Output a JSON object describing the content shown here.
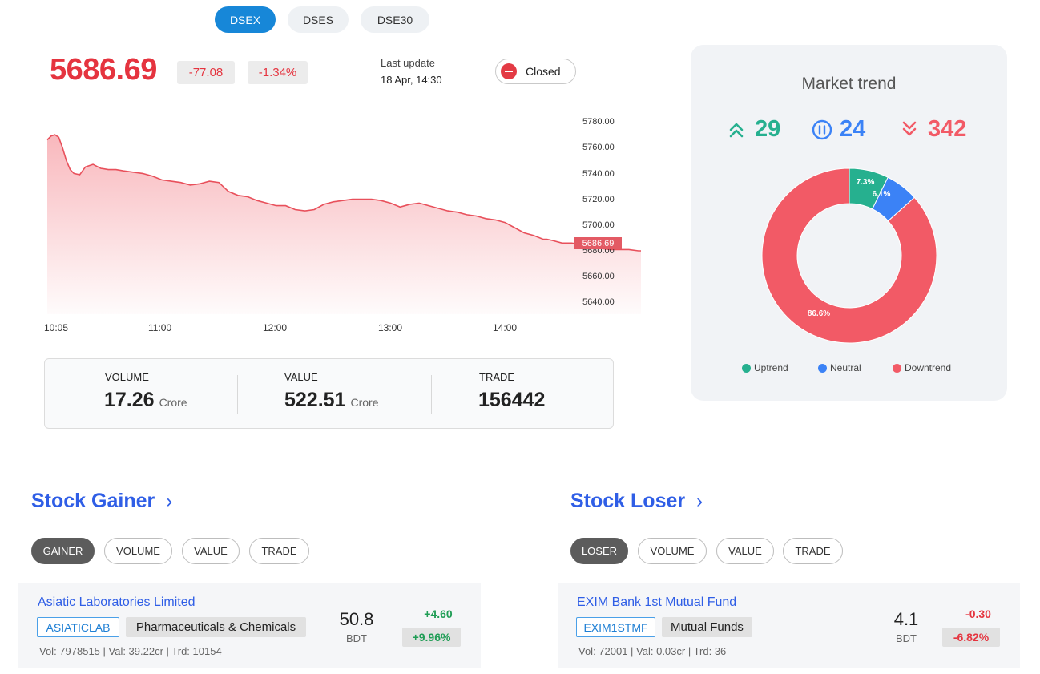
{
  "index_tabs": [
    {
      "label": "DSEX",
      "active": true
    },
    {
      "label": "DSES",
      "active": false
    },
    {
      "label": "DSE30",
      "active": false
    }
  ],
  "quote": {
    "value": "5686.69",
    "change": "-77.08",
    "change_pct": "-1.34%",
    "last_update_label": "Last update",
    "last_update_value": "18 Apr, 14:30",
    "market_status": "Closed"
  },
  "chart_data": {
    "type": "area",
    "x_ticks": [
      "10:05",
      "11:00",
      "12:00",
      "13:00",
      "14:00"
    ],
    "y_ticks": [
      "5780.00",
      "5760.00",
      "5740.00",
      "5720.00",
      "5700.00",
      "5680.00",
      "5660.00",
      "5640.00"
    ],
    "ylim": [
      5640,
      5780
    ],
    "current_label": "5686.69",
    "line_color": "#e8505b",
    "x_minutes": [
      0,
      2,
      4,
      6,
      8,
      10,
      12,
      14,
      17,
      20,
      24,
      28,
      32,
      36,
      40,
      45,
      50,
      55,
      60,
      65,
      70,
      75,
      80,
      85,
      90,
      95,
      100,
      105,
      110,
      115,
      120,
      125,
      130,
      135,
      140,
      145,
      150,
      155,
      160,
      165,
      170,
      175,
      180,
      185,
      190,
      195,
      200,
      205,
      210,
      215,
      220,
      225,
      230,
      235,
      240,
      245,
      250,
      255,
      260,
      262,
      265,
      270,
      275,
      280,
      285,
      290,
      295,
      300,
      305,
      310,
      315,
      320,
      325,
      330,
      335,
      340,
      345,
      350,
      355,
      360,
      365,
      370,
      375,
      380,
      385,
      388,
      390,
      395,
      400,
      405,
      410,
      415,
      420,
      425,
      430,
      435,
      440,
      445,
      450,
      455,
      460,
      465,
      470,
      475,
      480,
      485
    ],
    "values": [
      5766,
      5769,
      5770,
      5768,
      5760,
      5750,
      5743,
      5740,
      5739,
      5745,
      5747,
      5744,
      5743,
      5743,
      5742,
      5741,
      5740,
      5738,
      5735,
      5734,
      5733,
      5731,
      5732,
      5734,
      5733,
      5726,
      5723,
      5722,
      5719,
      5717,
      5715,
      5715,
      5712,
      5711,
      5712,
      5716,
      5718,
      5719,
      5720,
      5720,
      5720,
      5719,
      5717,
      5714,
      5716,
      5717,
      5715,
      5713,
      5711,
      5710,
      5708,
      5707,
      5705,
      5704,
      5702,
      5698,
      5694,
      5692,
      5689,
      5689,
      5688,
      5686,
      5686,
      5685,
      5683,
      5682,
      5681,
      5681,
      5681,
      5680,
      5680,
      5680,
      5680,
      5679,
      5679,
      5678,
      5678,
      5679,
      5677,
      5679,
      5680,
      5685,
      5689,
      5691,
      5694,
      5696,
      5698,
      5694,
      5690,
      5688,
      5687,
      5687,
      5687,
      5687,
      5687,
      5687,
      5687,
      5687,
      5687,
      5687,
      5687,
      5687,
      5687,
      5687,
      5687,
      5687
    ]
  },
  "stats": {
    "volume_label": "VOLUME",
    "volume_value": "17.26",
    "volume_unit": "Crore",
    "value_label": "VALUE",
    "value_value": "522.51",
    "value_unit": "Crore",
    "trade_label": "TRADE",
    "trade_value": "156442"
  },
  "market_trend": {
    "title": "Market trend",
    "uptrend_count": "29",
    "neutral_count": "24",
    "downtrend_count": "342",
    "colors": {
      "uptrend": "#26b08f",
      "neutral": "#3b82f6",
      "downtrend": "#f25a66"
    },
    "donut": [
      {
        "name": "Uptrend",
        "label": "7.3%",
        "value": 7.3
      },
      {
        "name": "Neutral",
        "label": "6.1%",
        "value": 6.1
      },
      {
        "name": "Downtrend",
        "label": "86.6%",
        "value": 86.6
      }
    ],
    "legend": [
      "Uptrend",
      "Neutral",
      "Downtrend"
    ]
  },
  "gainer": {
    "title": "Stock Gainer",
    "filters": [
      "GAINER",
      "VOLUME",
      "VALUE",
      "TRADE"
    ],
    "active_filter": "GAINER",
    "item": {
      "name": "Asiatic Laboratories Limited",
      "code": "ASIATICLAB",
      "sector": "Pharmaceuticals & Chemicals",
      "meta": "Vol: 7978515 | Val: 39.22cr | Trd: 10154",
      "price": "50.8",
      "currency": "BDT",
      "change": "+4.60",
      "change_pct": "+9.96%"
    }
  },
  "loser": {
    "title": "Stock Loser",
    "filters": [
      "LOSER",
      "VOLUME",
      "VALUE",
      "TRADE"
    ],
    "active_filter": "LOSER",
    "item": {
      "name": "EXIM Bank 1st Mutual Fund",
      "code": "EXIM1STMF",
      "sector": "Mutual Funds",
      "meta": "Vol: 72001 | Val: 0.03cr | Trd: 36",
      "price": "4.1",
      "currency": "BDT",
      "change": "-0.30",
      "change_pct": "-6.82%"
    }
  }
}
